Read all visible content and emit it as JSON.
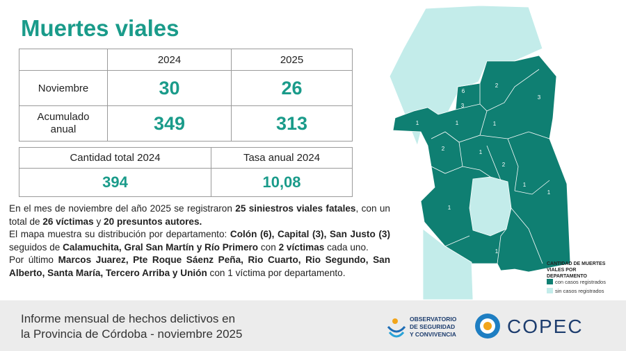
{
  "title": "Muertes viales",
  "table": {
    "header": [
      "2024",
      "2025"
    ],
    "rows": [
      [
        "Noviembre",
        "30",
        "26"
      ],
      [
        "Acumulado anual",
        "349",
        "313"
      ]
    ]
  },
  "totals": {
    "header": [
      "Cantidad total 2024",
      "Tasa anual 2024"
    ],
    "values": [
      "394",
      "10,08"
    ]
  },
  "paragraphs": [
    [
      {
        "text": "En el mes de noviembre del año 2025 se registraron ",
        "bold": false
      },
      {
        "text": "25 siniestros viales fatales",
        "bold": true
      },
      {
        "text": ", con un total de ",
        "bold": false
      },
      {
        "text": "26 víctimas",
        "bold": true
      },
      {
        "text": " y ",
        "bold": false
      },
      {
        "text": "20 presuntos autores.",
        "bold": true
      }
    ],
    [
      {
        "text": "El mapa muestra su distribución por departamento: ",
        "bold": false
      },
      {
        "text": "Colón (6), Capital (3), San Justo (3)",
        "bold": true
      },
      {
        "text": " seguidos de ",
        "bold": false
      },
      {
        "text": "Calamuchita, Gral San Martín y Río Primero",
        "bold": true
      },
      {
        "text": " con ",
        "bold": false
      },
      {
        "text": "2 víctimas",
        "bold": true
      },
      {
        "text": " cada uno.",
        "bold": false
      }
    ],
    [
      {
        "text": "Por último ",
        "bold": false
      },
      {
        "text": "Marcos Juarez, Pte Roque Sáenz Peña, Rio Cuarto, Rio Segundo, San Alberto, Santa María, Tercero Arriba y Unión",
        "bold": true
      },
      {
        "text": " con 1 víctima por departamento.",
        "bold": false
      }
    ]
  ],
  "map": {
    "labels": [
      "6",
      "2",
      "3",
      "3",
      "1",
      "1",
      "1",
      "2",
      "1",
      "2",
      "1",
      "1",
      "1",
      "1"
    ],
    "legend": {
      "title": "CANTIDAD DE MUERTES VIALES POR DEPARTAMENTO",
      "items": [
        {
          "label": "con casos registrados",
          "color": "#0f7f72"
        },
        {
          "label": "sin casos registrados",
          "color": "#c3ecea"
        }
      ]
    }
  },
  "footer": {
    "lines": [
      "Informe mensual de hechos delictivos en",
      "la Provincia de Córdoba - noviembre 2025"
    ],
    "observatorio": [
      "OBSERVATORIO",
      "DE SEGURIDAD",
      "Y CONVIVENCIA"
    ],
    "copec": "COPEC"
  }
}
